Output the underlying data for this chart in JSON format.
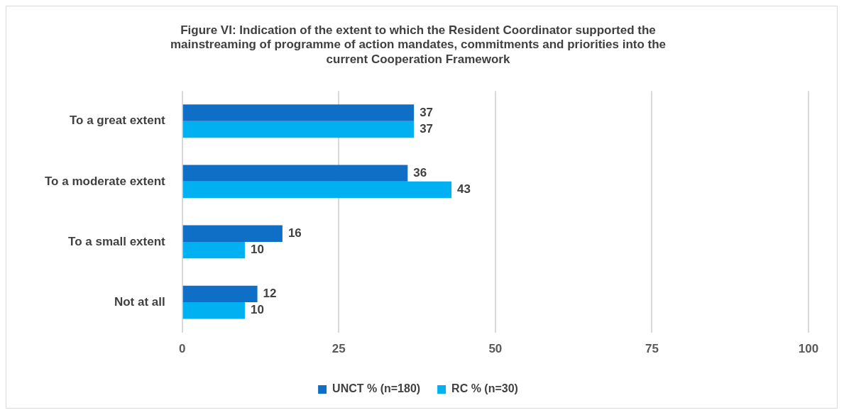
{
  "chart_data": {
    "type": "bar",
    "orientation": "horizontal",
    "title": "Figure VI: Indication of the extent to which the Resident Coordinator supported the mainstreaming of programme of action mandates, commitments and priorities into the current Cooperation Framework",
    "categories": [
      "To a great extent",
      "To a moderate extent",
      "To a small extent",
      "Not at all"
    ],
    "series": [
      {
        "name": "UNCT % (n=180)",
        "color": "#0f6fc6",
        "values": [
          37,
          36,
          16,
          12
        ]
      },
      {
        "name": "RC % (n=30)",
        "color": "#00b0f0",
        "values": [
          37,
          43,
          10,
          10
        ]
      }
    ],
    "xlim": [
      0,
      100
    ],
    "xticks": [
      0,
      25,
      50,
      75,
      100
    ],
    "grid": "x",
    "legend": "bottom",
    "data_labels": true
  }
}
